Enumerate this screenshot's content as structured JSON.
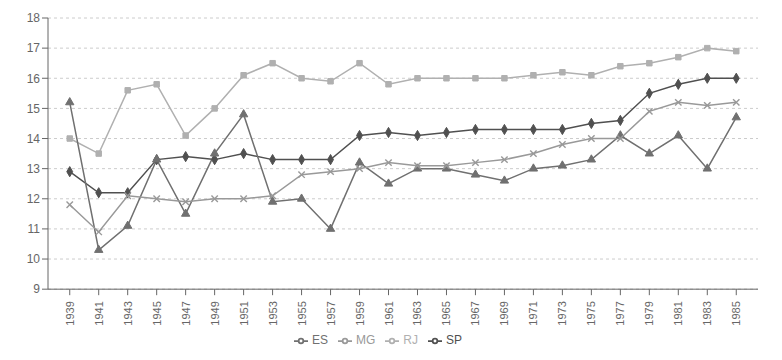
{
  "chart_data": {
    "type": "line",
    "x": [
      1939,
      1941,
      1943,
      1945,
      1947,
      1949,
      1951,
      1953,
      1955,
      1957,
      1959,
      1961,
      1963,
      1965,
      1967,
      1969,
      1971,
      1973,
      1975,
      1977,
      1979,
      1981,
      1983,
      1985
    ],
    "series": [
      {
        "name": "SP",
        "color": "#505050",
        "marker": "diamond",
        "values": [
          12.9,
          12.2,
          12.2,
          13.3,
          13.4,
          13.3,
          13.5,
          13.3,
          13.3,
          13.3,
          14.1,
          14.2,
          14.1,
          14.2,
          14.3,
          14.3,
          14.3,
          14.3,
          14.5,
          14.6,
          15.5,
          15.8,
          16.0,
          16.0
        ]
      },
      {
        "name": "RJ",
        "color": "#b0b0b0",
        "marker": "square",
        "values": [
          14.0,
          13.5,
          15.6,
          15.8,
          14.1,
          15.0,
          16.1,
          16.5,
          16.0,
          15.9,
          16.5,
          15.8,
          16.0,
          16.0,
          16.0,
          16.0,
          16.1,
          16.2,
          16.1,
          16.4,
          16.5,
          16.7,
          17.0,
          16.9
        ]
      },
      {
        "name": "ES",
        "color": "#707070",
        "marker": "triangle",
        "values": [
          15.2,
          10.3,
          11.1,
          13.3,
          11.5,
          13.5,
          14.8,
          11.9,
          12.0,
          11.0,
          13.2,
          12.5,
          13.0,
          13.0,
          12.8,
          12.6,
          13.0,
          13.1,
          13.3,
          14.1,
          13.5,
          14.1,
          13.0,
          14.7
        ]
      },
      {
        "name": "MG",
        "color": "#999999",
        "marker": "x",
        "values": [
          11.8,
          10.9,
          12.1,
          12.0,
          11.9,
          12.0,
          12.0,
          12.1,
          12.8,
          12.9,
          13.0,
          13.2,
          13.1,
          13.1,
          13.2,
          13.3,
          13.5,
          13.8,
          14.0,
          14.0,
          14.9,
          15.2,
          15.1,
          15.2
        ]
      }
    ],
    "xlim": [
      1937.5,
      1986.5
    ],
    "xticks": [
      1939,
      1941,
      1943,
      1945,
      1947,
      1949,
      1951,
      1953,
      1955,
      1957,
      1959,
      1961,
      1963,
      1965,
      1967,
      1969,
      1971,
      1973,
      1975,
      1977,
      1979,
      1981,
      1983,
      1985
    ],
    "ylim": [
      9,
      18
    ],
    "yticks": [
      9,
      10,
      11,
      12,
      13,
      14,
      15,
      16,
      17,
      18
    ],
    "grid": "y",
    "legend": "bottom"
  }
}
